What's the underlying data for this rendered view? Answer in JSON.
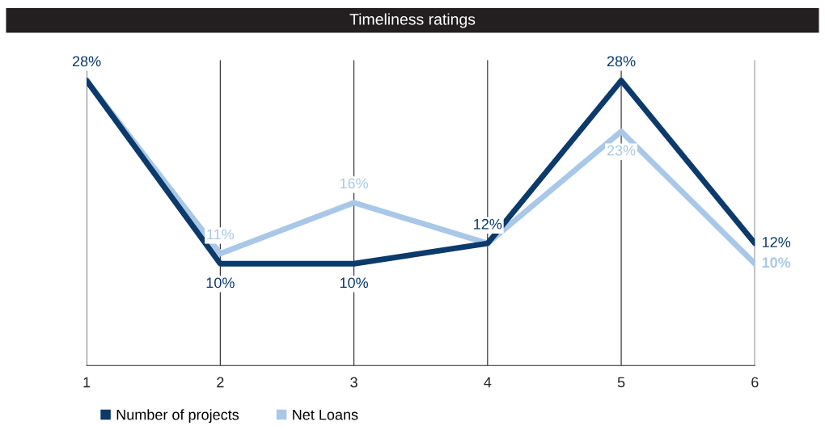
{
  "chart_data": {
    "type": "line",
    "title": "Timeliness ratings",
    "x": [
      1,
      2,
      3,
      4,
      5,
      6
    ],
    "xlim": [
      1,
      6
    ],
    "xticks": [
      1,
      2,
      3,
      4,
      5,
      6
    ],
    "ylim": [
      0,
      30
    ],
    "tick_labels": "x",
    "grid": "x",
    "legend": "bottom left",
    "marker": "none",
    "line_style": "solid",
    "series": [
      {
        "name": "Number of projects",
        "color": "#0b3a6b",
        "values": [
          28,
          10,
          10,
          12,
          28,
          12
        ],
        "value_labels": [
          "28%",
          "10%",
          "10%",
          "12%",
          "28%",
          "12%"
        ]
      },
      {
        "name": "Net Loans",
        "color": "#a9c8e8",
        "values": [
          28,
          11,
          16,
          12,
          23,
          10
        ],
        "value_labels": [
          null,
          "11%",
          "16%",
          null,
          "23%",
          "10%"
        ]
      }
    ]
  }
}
